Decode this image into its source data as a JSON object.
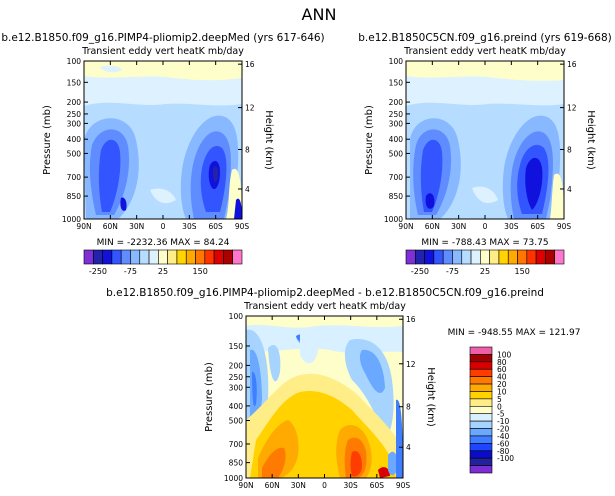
{
  "header": {
    "season": "ANN"
  },
  "palette": {
    "top": [
      "#7f2fd6",
      "#2222aa",
      "#1111dd",
      "#3355ff",
      "#5f8cff",
      "#88b8ff",
      "#b6dcff",
      "#ddf1ff",
      "#fefecb",
      "#ffee88",
      "#ffd400",
      "#ffaa00",
      "#ff7700",
      "#ff3300",
      "#dd0000",
      "#aa0000",
      "#ff77cc"
    ],
    "diff": [
      "#7a2ed4",
      "#22229a",
      "#0c0cc8",
      "#1f46ff",
      "#3f7fff",
      "#6aa9ff",
      "#a6d4ff",
      "#d8f0ff",
      "#fefecb",
      "#ffee88",
      "#ffd200",
      "#ffaa00",
      "#ff7a00",
      "#ff3d00",
      "#d80000",
      "#a00000",
      "#ee5fa8"
    ]
  },
  "chart_data": [
    {
      "type": "heatmap",
      "id": "p1",
      "title": "b.e12.B1850.f09_g16.PIMP4-pliomip2.deepMed (yrs 617-646)",
      "subtitle": "Transient eddy vert heatK mb/day",
      "xlabel": "",
      "ylabel": "Pressure (mb)",
      "y2label": "Height (km)",
      "x_ticks": [
        "90N",
        "60N",
        "30N",
        "0",
        "30S",
        "60S",
        "90S"
      ],
      "y_ticks": [
        "100",
        "150",
        "200",
        "250",
        "300",
        "400",
        "500",
        "700",
        "850",
        "1000"
      ],
      "y2_ticks": [
        "16",
        "12",
        "8",
        "4"
      ],
      "stats": "MIN = -2232.36    MAX =  84.24",
      "min": -2232.36,
      "max": 84.24
    },
    {
      "type": "heatmap",
      "id": "p2",
      "title": "b.e12.B1850C5CN.f09_g16.preind (yrs 619-668)",
      "subtitle": "Transient eddy vert heatK mb/day",
      "xlabel": "",
      "ylabel": "Pressure (mb)",
      "y2label": "Height (km)",
      "x_ticks": [
        "90N",
        "60N",
        "30N",
        "0",
        "30S",
        "60S",
        "90S"
      ],
      "y_ticks": [
        "100",
        "150",
        "200",
        "250",
        "300",
        "400",
        "500",
        "700",
        "850",
        "1000"
      ],
      "y2_ticks": [
        "16",
        "12",
        "8",
        "4"
      ],
      "stats": "MIN = -788.43    MAX =  73.75",
      "min": -788.43,
      "max": 73.75
    },
    {
      "type": "heatmap",
      "id": "p3",
      "title": "b.e12.B1850.f09_g16.PIMP4-pliomip2.deepMed - b.e12.B1850C5CN.f09_g16.preind",
      "subtitle": "Transient eddy vert heatK mb/day",
      "xlabel": "",
      "ylabel": "Pressure (mb)",
      "y2label": "Height (km)",
      "x_ticks": [
        "90N",
        "60N",
        "30N",
        "0",
        "30S",
        "60S",
        "90S"
      ],
      "y_ticks": [
        "100",
        "150",
        "200",
        "250",
        "300",
        "400",
        "500",
        "700",
        "850",
        "1000"
      ],
      "y2_ticks": [
        "16",
        "12",
        "8",
        "4"
      ],
      "stats": "MIN = -948.55    MAX = 121.97",
      "min": -948.55,
      "max": 121.97
    }
  ],
  "colorbar_top": {
    "labels": [
      "-250",
      "-75",
      "25",
      "150"
    ]
  },
  "colorbar_diff": {
    "labels": [
      "100",
      "80",
      "60",
      "40",
      "20",
      "10",
      "5",
      "0",
      "-5",
      "-10",
      "-20",
      "-40",
      "-60",
      "-80",
      "-100"
    ]
  }
}
